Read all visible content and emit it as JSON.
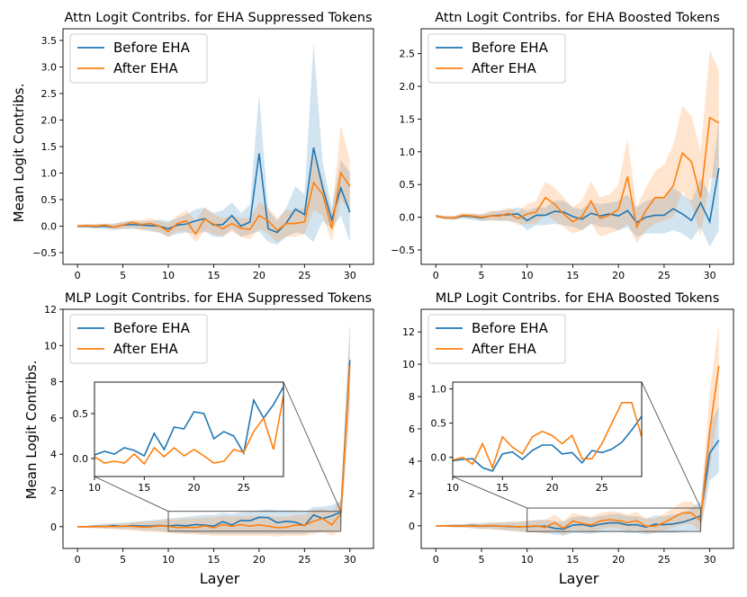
{
  "figure": {
    "ylabel_top": "Mean Logit Contribs.",
    "ylabel_bottom": "Mean Logit Contribs.",
    "xlabel": "Layer"
  },
  "colors": {
    "before": "#1f77b4",
    "after": "#ff7f0e"
  },
  "chart_data": [
    {
      "type": "line",
      "title": "Attn Logit Contribs. for EHA Suppressed Tokens",
      "xlim": [
        -1.6,
        32.6
      ],
      "ylim": [
        -0.72,
        3.72
      ],
      "xticks": [
        0,
        5,
        10,
        15,
        20,
        25,
        30
      ],
      "yticks": [
        -0.5,
        0.0,
        0.5,
        1.0,
        1.5,
        2.0,
        2.5,
        3.0,
        3.5
      ],
      "legend": [
        "Before EHA",
        "After EHA"
      ],
      "legend_position": "top-left",
      "series": [
        {
          "name": "Before EHA",
          "color": "#1f77b4",
          "values": [
            0,
            0,
            -0.01,
            0,
            -0.02,
            0.02,
            0.03,
            0.02,
            0.01,
            0,
            -0.05,
            0.02,
            0.04,
            0.1,
            0.14,
            0.02,
            0.03,
            0.2,
            0.0,
            0.08,
            1.37,
            -0.05,
            -0.12,
            0.06,
            0.32,
            0.22,
            1.48,
            0.72,
            0.12,
            0.72,
            0.26
          ],
          "lower": [
            -0.03,
            -0.03,
            -0.04,
            -0.05,
            -0.07,
            -0.06,
            -0.05,
            -0.06,
            -0.1,
            -0.12,
            -0.2,
            -0.15,
            -0.12,
            -0.15,
            -0.1,
            -0.2,
            -0.2,
            -0.05,
            -0.2,
            -0.15,
            -0.1,
            -0.3,
            -0.35,
            -0.2,
            -0.12,
            -0.15,
            -0.3,
            0.1,
            -0.05,
            0.2,
            -0.3
          ],
          "upper": [
            0.03,
            0.03,
            0.03,
            0.04,
            0.05,
            0.08,
            0.1,
            0.09,
            0.1,
            0.12,
            0.1,
            0.15,
            0.22,
            0.32,
            0.35,
            0.25,
            0.3,
            0.45,
            0.25,
            0.4,
            2.5,
            0.3,
            0.1,
            0.35,
            0.75,
            0.6,
            3.45,
            1.2,
            0.35,
            1.25,
            1.0
          ]
        },
        {
          "name": "After EHA",
          "color": "#ff7f0e",
          "values": [
            0,
            0.01,
            0,
            0.02,
            -0.02,
            0.02,
            0.07,
            0.03,
            0.05,
            0,
            -0.1,
            0.05,
            0.1,
            -0.15,
            0.13,
            0.04,
            -0.05,
            0.05,
            -0.04,
            -0.06,
            0.2,
            0.1,
            -0.08,
            0.05,
            0.05,
            0.08,
            0.82,
            0.6,
            -0.05,
            1.0,
            0.75
          ],
          "lower": [
            -0.03,
            -0.03,
            -0.04,
            -0.03,
            -0.06,
            -0.05,
            -0.03,
            -0.08,
            -0.07,
            -0.12,
            -0.2,
            -0.1,
            -0.1,
            -0.3,
            -0.1,
            -0.15,
            -0.2,
            -0.1,
            -0.2,
            -0.25,
            -0.05,
            -0.15,
            -0.3,
            -0.2,
            -0.2,
            -0.15,
            0.3,
            0.2,
            -0.3,
            0.5,
            0.3
          ],
          "upper": [
            0.03,
            0.04,
            0.04,
            0.05,
            0.04,
            0.08,
            0.12,
            0.12,
            0.15,
            0.1,
            0.05,
            0.2,
            0.3,
            0.1,
            0.35,
            0.22,
            0.15,
            0.2,
            0.15,
            0.15,
            0.45,
            0.35,
            0.15,
            0.3,
            0.3,
            0.35,
            1.35,
            0.9,
            0.25,
            1.9,
            1.25
          ]
        }
      ]
    },
    {
      "type": "line",
      "title": "Attn Logit Contribs. for EHA Boosted Tokens",
      "xlim": [
        -1.6,
        32.6
      ],
      "ylim": [
        -0.72,
        2.88
      ],
      "xticks": [
        0,
        5,
        10,
        15,
        20,
        25,
        30
      ],
      "yticks": [
        -0.5,
        0.0,
        0.5,
        1.0,
        1.5,
        2.0,
        2.5
      ],
      "legend": [
        "Before EHA",
        "After EHA"
      ],
      "legend_position": "top-left",
      "series": [
        {
          "name": "Before EHA",
          "color": "#1f77b4",
          "values": [
            0.02,
            -0.01,
            -0.01,
            0.02,
            0.01,
            -0.01,
            0.02,
            0.03,
            0.04,
            0.05,
            -0.05,
            0.03,
            0.03,
            0.09,
            0.08,
            0.01,
            -0.03,
            0.06,
            0.02,
            0.05,
            0.02,
            0.1,
            -0.08,
            0,
            0.03,
            0.03,
            0.13,
            0.05,
            -0.05,
            0.22,
            -0.07,
            0.75
          ],
          "lower": [
            -0.01,
            -0.03,
            -0.04,
            -0.02,
            -0.04,
            -0.06,
            -0.05,
            -0.05,
            -0.06,
            -0.08,
            -0.2,
            -0.12,
            -0.12,
            -0.1,
            -0.12,
            -0.15,
            -0.2,
            -0.1,
            -0.15,
            -0.15,
            -0.2,
            -0.15,
            -0.3,
            -0.25,
            -0.25,
            -0.25,
            -0.2,
            -0.25,
            -0.35,
            -0.15,
            -0.45,
            -0.2
          ],
          "upper": [
            0.04,
            0.02,
            0.02,
            0.05,
            0.05,
            0.04,
            0.08,
            0.1,
            0.12,
            0.15,
            0.1,
            0.15,
            0.15,
            0.25,
            0.25,
            0.15,
            0.12,
            0.22,
            0.2,
            0.22,
            0.25,
            0.35,
            0.15,
            0.25,
            0.3,
            0.3,
            0.45,
            0.35,
            0.25,
            0.6,
            0.35,
            1.5
          ]
        },
        {
          "name": "After EHA",
          "color": "#ff7f0e",
          "values": [
            0.02,
            -0.01,
            -0.01,
            0.03,
            0.02,
            0,
            0.02,
            0.02,
            0.06,
            -0.02,
            0.05,
            0.08,
            0.3,
            0.2,
            0.05,
            -0.07,
            0.01,
            0.25,
            -0.02,
            0.03,
            0.12,
            0.62,
            -0.15,
            0.1,
            0.3,
            0.3,
            0.48,
            0.98,
            0.85,
            0.3,
            1.52,
            1.44
          ],
          "lower": [
            0,
            -0.03,
            -0.04,
            -0.01,
            -0.02,
            -0.05,
            -0.05,
            -0.06,
            -0.05,
            -0.12,
            -0.1,
            -0.1,
            0.05,
            -0.05,
            -0.15,
            -0.25,
            -0.2,
            -0.1,
            -0.3,
            -0.25,
            -0.2,
            -0.1,
            -0.4,
            -0.2,
            -0.1,
            -0.05,
            0.0,
            0.4,
            0.2,
            -0.3,
            0.6,
            0.6
          ],
          "upper": [
            0.04,
            0.02,
            0.02,
            0.07,
            0.06,
            0.05,
            0.1,
            0.1,
            0.15,
            0.08,
            0.2,
            0.25,
            0.55,
            0.45,
            0.3,
            0.15,
            0.25,
            0.55,
            0.3,
            0.35,
            0.5,
            1.2,
            0.15,
            0.45,
            0.7,
            0.8,
            1.1,
            1.7,
            1.55,
            1.0,
            2.55,
            2.25
          ]
        }
      ]
    },
    {
      "type": "line",
      "title": "MLP Logit Contribs. for EHA Suppressed Tokens",
      "xlim": [
        -1.6,
        32.6
      ],
      "ylim": [
        -1.2,
        12.0
      ],
      "xticks": [
        0,
        5,
        10,
        15,
        20,
        25,
        30
      ],
      "yticks": [
        0,
        2,
        4,
        6,
        8,
        10,
        12
      ],
      "legend": [
        "Before EHA",
        "After EHA"
      ],
      "legend_position": "top-left",
      "inset": {
        "xlim": [
          10,
          29
        ],
        "ylim": [
          -0.2,
          0.85
        ],
        "xticks": [
          10,
          15,
          20,
          25
        ],
        "yticks": [
          0.0,
          0.5
        ],
        "ylabels": [
          "0.0",
          "0.5"
        ],
        "zoom_box_ylim": [
          -0.25,
          0.85
        ]
      },
      "series": [
        {
          "name": "Before EHA",
          "color": "#1f77b4",
          "values": [
            0,
            0,
            0.02,
            0.01,
            0.06,
            0.02,
            0.06,
            0.04,
            0.03,
            0.07,
            0.04,
            0.08,
            0.05,
            0.12,
            0.09,
            0.03,
            0.28,
            0.1,
            0.35,
            0.33,
            0.52,
            0.5,
            0.22,
            0.3,
            0.25,
            0.06,
            0.65,
            0.45,
            0.6,
            0.8,
            9.2
          ],
          "lower": [
            -0.05,
            -0.05,
            -0.05,
            -0.1,
            -0.1,
            -0.15,
            -0.15,
            -0.2,
            -0.2,
            -0.25,
            -0.3,
            -0.3,
            -0.35,
            -0.35,
            -0.4,
            -0.4,
            -0.4,
            -0.4,
            -0.4,
            -0.4,
            -0.4,
            -0.4,
            -0.4,
            -0.4,
            -0.4,
            -0.4,
            -0.3,
            -0.3,
            -0.2,
            -0.2,
            7.0
          ],
          "upper": [
            0.05,
            0.05,
            0.1,
            0.15,
            0.2,
            0.2,
            0.25,
            0.3,
            0.35,
            0.4,
            0.45,
            0.5,
            0.55,
            0.6,
            0.65,
            0.65,
            0.75,
            0.7,
            0.8,
            0.85,
            0.9,
            0.95,
            0.9,
            0.9,
            0.9,
            0.8,
            1.1,
            1.1,
            1.2,
            1.4,
            11.3
          ]
        },
        {
          "name": "After EHA",
          "color": "#ff7f0e",
          "values": [
            0,
            0,
            0,
            0.02,
            0.01,
            0.03,
            0.02,
            -0.02,
            -0.01,
            0.05,
            0.02,
            -0.05,
            -0.03,
            -0.05,
            0.05,
            -0.06,
            0.12,
            0.02,
            0.12,
            0.03,
            0.1,
            0.03,
            -0.05,
            -0.03,
            0.1,
            0.07,
            0.3,
            0.45,
            0.1,
            0.7,
            8.9
          ],
          "lower": [
            -0.05,
            -0.05,
            -0.1,
            -0.1,
            -0.15,
            -0.15,
            -0.2,
            -0.25,
            -0.3,
            -0.3,
            -0.35,
            -0.4,
            -0.4,
            -0.45,
            -0.45,
            -0.5,
            -0.5,
            -0.5,
            -0.5,
            -0.5,
            -0.5,
            -0.5,
            -0.55,
            -0.5,
            -0.5,
            -0.5,
            -0.4,
            -0.3,
            -0.5,
            -0.2,
            6.5
          ],
          "upper": [
            0.05,
            0.05,
            0.1,
            0.15,
            0.15,
            0.2,
            0.25,
            0.3,
            0.3,
            0.35,
            0.4,
            0.4,
            0.45,
            0.45,
            0.5,
            0.5,
            0.6,
            0.55,
            0.6,
            0.6,
            0.6,
            0.6,
            0.55,
            0.55,
            0.65,
            0.65,
            0.9,
            1.0,
            0.8,
            1.5,
            11.2
          ]
        }
      ]
    },
    {
      "type": "line",
      "title": "MLP Logit Contribs. for EHA Boosted Tokens",
      "xlim": [
        -1.6,
        32.6
      ],
      "ylim": [
        -1.4,
        13.4
      ],
      "xticks": [
        0,
        5,
        10,
        15,
        20,
        25,
        30
      ],
      "yticks": [
        0,
        2,
        4,
        6,
        8,
        10,
        12
      ],
      "legend": [
        "Before EHA",
        "After EHA"
      ],
      "legend_position": "top-left",
      "inset": {
        "xlim": [
          10,
          29
        ],
        "ylim": [
          -0.28,
          1.1
        ],
        "xticks": [
          10,
          15,
          20,
          25
        ],
        "yticks": [
          0.0,
          0.5,
          1.0
        ],
        "ylabels": [
          "0.0",
          "0.5",
          "1.0"
        ],
        "zoom_box_ylim": [
          -0.35,
          1.1
        ]
      },
      "series": [
        {
          "name": "Before EHA",
          "color": "#1f77b4",
          "values": [
            0,
            0,
            -0.01,
            0,
            0.02,
            -0.02,
            0.01,
            -0.02,
            -0.04,
            -0.06,
            -0.05,
            -0.03,
            -0.02,
            -0.15,
            -0.2,
            0.05,
            0.08,
            -0.03,
            0.1,
            0.18,
            0.18,
            0.05,
            0.07,
            -0.08,
            0.1,
            0.07,
            0.12,
            0.22,
            0.4,
            0.6,
            4.5,
            5.3
          ],
          "lower": [
            -0.05,
            -0.05,
            -0.1,
            -0.1,
            -0.15,
            -0.2,
            -0.2,
            -0.25,
            -0.3,
            -0.35,
            -0.4,
            -0.4,
            -0.45,
            -0.55,
            -0.6,
            -0.45,
            -0.45,
            -0.5,
            -0.4,
            -0.35,
            -0.35,
            -0.45,
            -0.45,
            -0.55,
            -0.45,
            -0.45,
            -0.45,
            -0.4,
            -0.3,
            -0.3,
            2.8,
            3.3
          ],
          "upper": [
            0.05,
            0.05,
            0.1,
            0.1,
            0.15,
            0.15,
            0.2,
            0.2,
            0.25,
            0.25,
            0.3,
            0.35,
            0.4,
            0.3,
            0.25,
            0.55,
            0.6,
            0.5,
            0.6,
            0.7,
            0.75,
            0.6,
            0.6,
            0.45,
            0.65,
            0.6,
            0.7,
            0.8,
            1.1,
            1.5,
            6.3,
            7.4
          ]
        },
        {
          "name": "After EHA",
          "color": "#ff7f0e",
          "values": [
            0,
            0,
            -0.02,
            0,
            -0.01,
            -0.02,
            0.02,
            -0.03,
            -0.01,
            -0.06,
            -0.04,
            0,
            -0.1,
            0.2,
            -0.15,
            0.3,
            0.15,
            0.05,
            0.3,
            0.38,
            0.32,
            0.2,
            0.32,
            -0.02,
            -0.02,
            0.2,
            0.5,
            0.8,
            0.8,
            0.3,
            5.9,
            9.9
          ],
          "lower": [
            -0.05,
            -0.05,
            -0.1,
            -0.1,
            -0.15,
            -0.2,
            -0.2,
            -0.25,
            -0.3,
            -0.35,
            -0.4,
            -0.4,
            -0.5,
            -0.3,
            -0.6,
            -0.2,
            -0.3,
            -0.4,
            -0.2,
            -0.1,
            -0.15,
            -0.3,
            -0.2,
            -0.45,
            -0.45,
            -0.3,
            -0.1,
            0.1,
            0.1,
            -0.4,
            3.5,
            7.3
          ],
          "upper": [
            0.05,
            0.05,
            0.1,
            0.1,
            0.15,
            0.15,
            0.2,
            0.2,
            0.25,
            0.25,
            0.3,
            0.35,
            0.35,
            0.7,
            0.3,
            0.8,
            0.65,
            0.55,
            0.8,
            0.9,
            0.85,
            0.7,
            0.85,
            0.45,
            0.45,
            0.75,
            1.1,
            1.5,
            1.5,
            1.0,
            8.3,
            12.5
          ]
        }
      ]
    }
  ]
}
